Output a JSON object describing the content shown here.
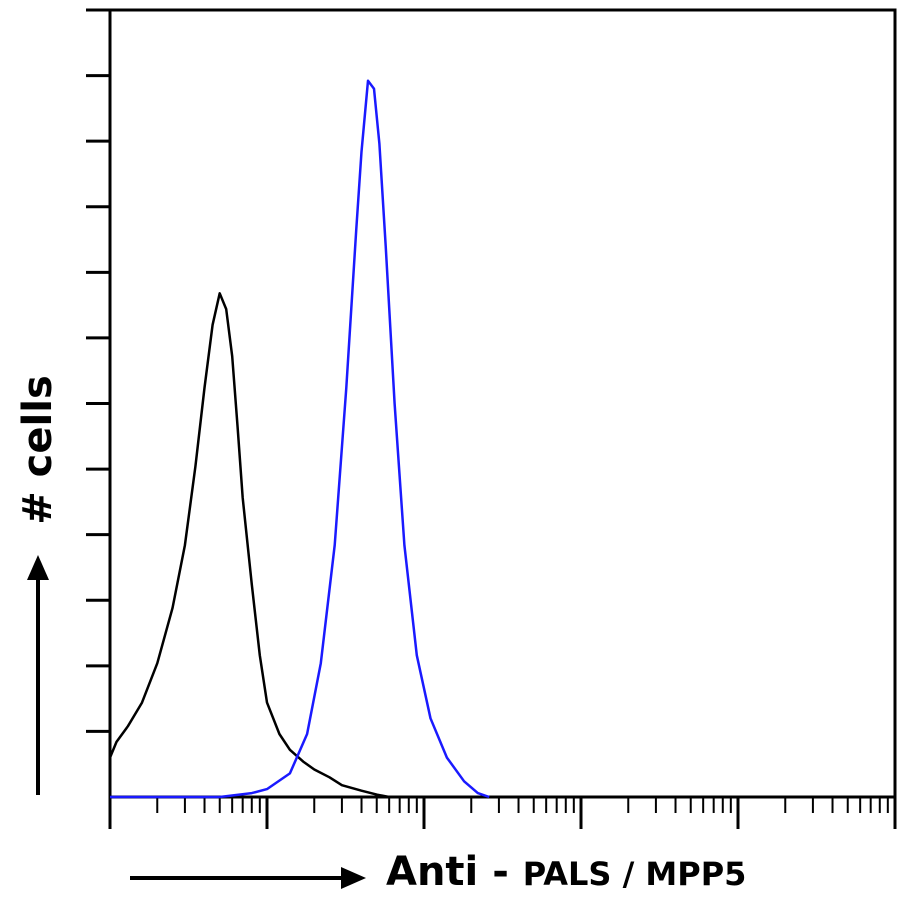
{
  "chart_data": {
    "type": "line",
    "title": "",
    "xlabel_prefix": "Anti - ",
    "xlabel_target": "PALS / MPP5",
    "ylabel": "# cells",
    "x_scale": "log",
    "xlim": [
      1,
      100000
    ],
    "ylim": [
      0,
      1
    ],
    "grid": false,
    "legend": "none",
    "series": [
      {
        "color": "#000000",
        "x": [
          1,
          1.1,
          1.3,
          1.6,
          2,
          2.5,
          3,
          3.5,
          4,
          4.5,
          5,
          5.5,
          6,
          6.5,
          7,
          8,
          9,
          10,
          12,
          14,
          17,
          20,
          25,
          30,
          40,
          50,
          60
        ],
        "values": [
          0.05,
          0.07,
          0.09,
          0.12,
          0.17,
          0.24,
          0.32,
          0.42,
          0.52,
          0.6,
          0.64,
          0.62,
          0.56,
          0.47,
          0.38,
          0.27,
          0.18,
          0.12,
          0.08,
          0.06,
          0.045,
          0.035,
          0.025,
          0.015,
          0.008,
          0.003,
          0
        ]
      },
      {
        "color": "#1a1aff",
        "x": [
          1,
          5,
          8,
          10,
          14,
          18,
          22,
          27,
          32,
          37,
          40,
          44,
          48,
          52,
          57,
          65,
          75,
          90,
          110,
          140,
          180,
          220,
          260
        ],
        "values": [
          0,
          0,
          0.005,
          0.01,
          0.03,
          0.08,
          0.17,
          0.32,
          0.52,
          0.72,
          0.82,
          0.91,
          0.9,
          0.83,
          0.7,
          0.5,
          0.32,
          0.18,
          0.1,
          0.05,
          0.02,
          0.005,
          0
        ]
      }
    ]
  }
}
